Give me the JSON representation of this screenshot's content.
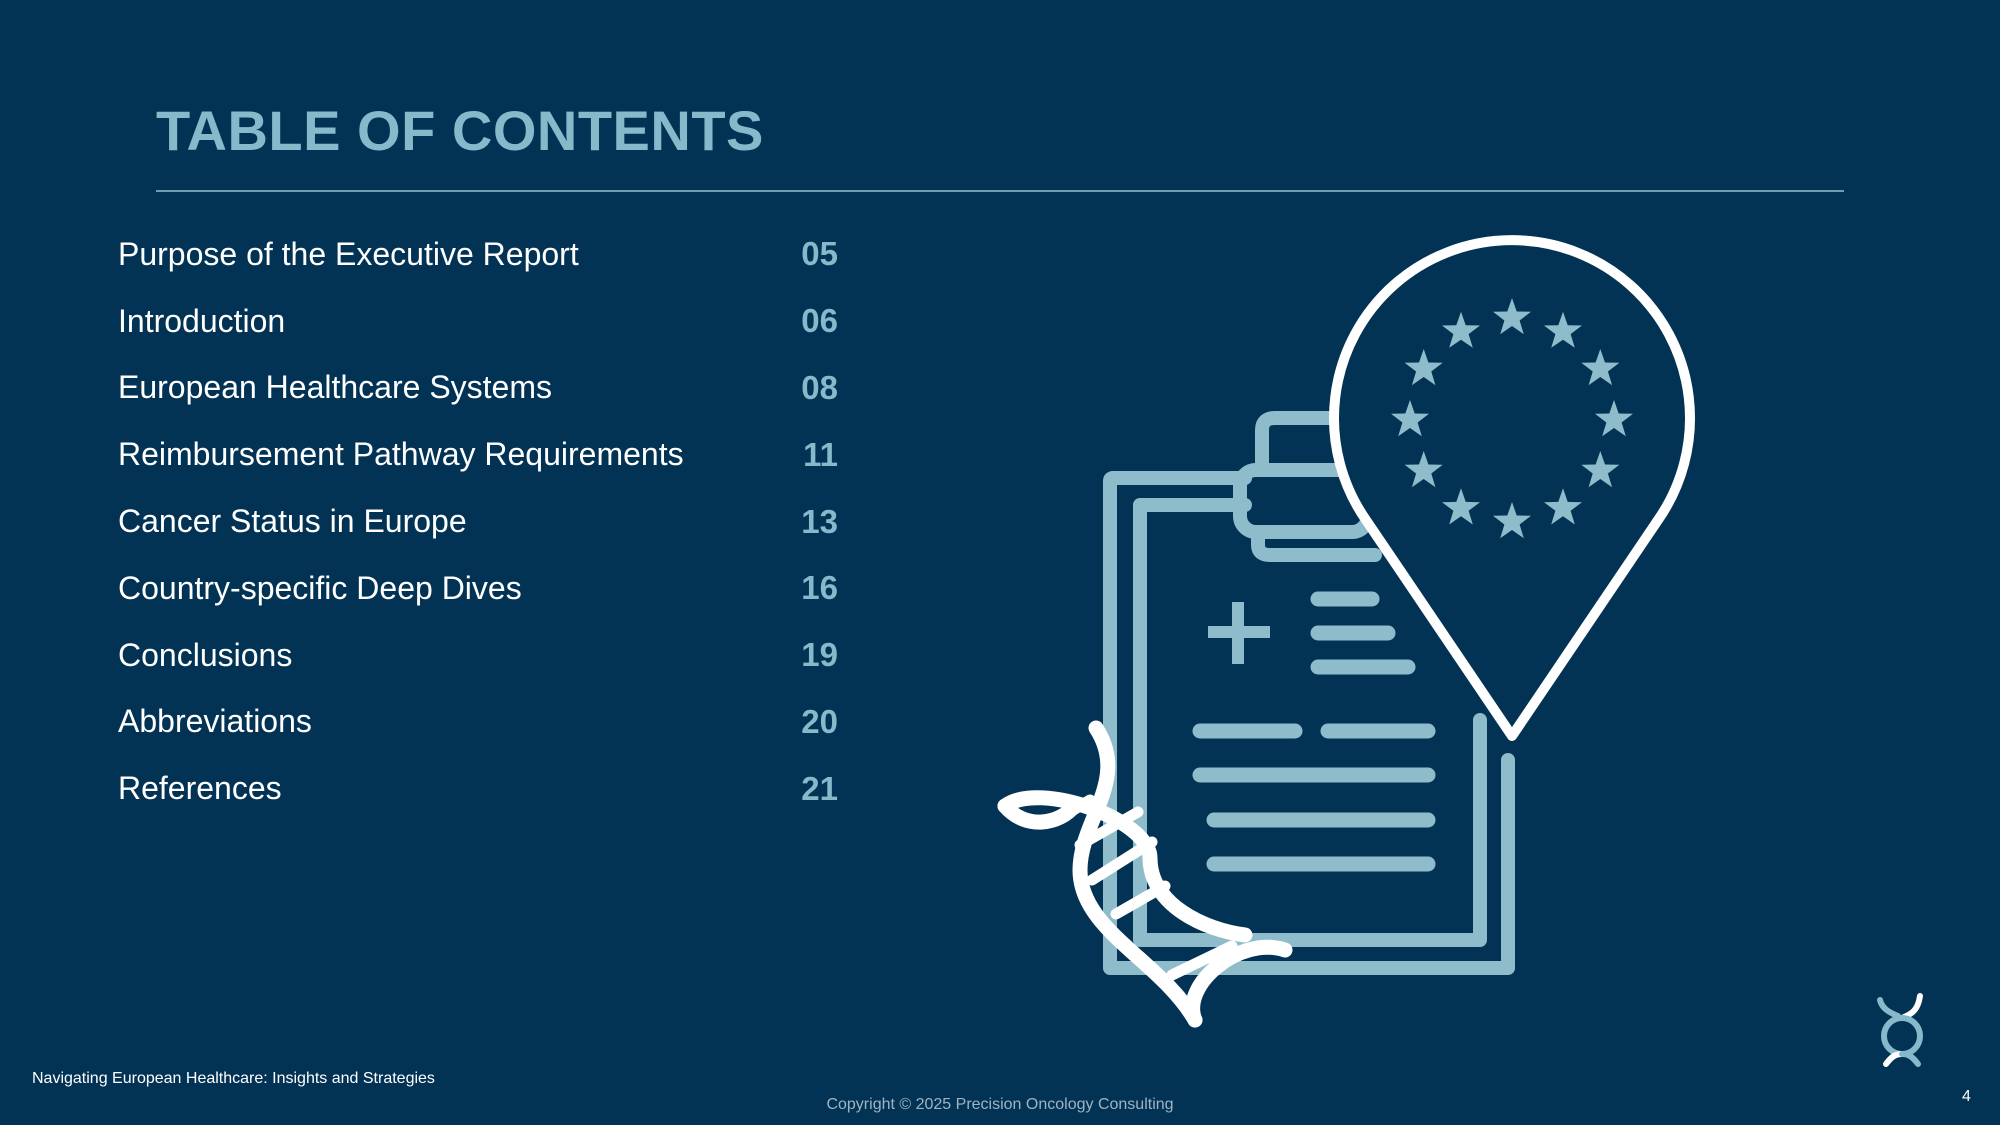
{
  "slide": {
    "title": "TABLE OF CONTENTS",
    "toc": [
      {
        "label": "Purpose of the Executive Report",
        "page": "05"
      },
      {
        "label": "Introduction",
        "page": "06"
      },
      {
        "label": "European Healthcare Systems",
        "page": "08"
      },
      {
        "label": "Reimbursement Pathway Requirements",
        "page": "11"
      },
      {
        "label": "Cancer Status in Europe",
        "page": "13"
      },
      {
        "label": "Country-specific Deep Dives",
        "page": "16"
      },
      {
        "label": "Conclusions",
        "page": "19"
      },
      {
        "label": "Abbreviations",
        "page": "20"
      },
      {
        "label": "References",
        "page": "21"
      }
    ]
  },
  "footer": {
    "left_text": "Navigating European Healthcare: Insights and Strategies",
    "copyright": "Copyright © 2025 Precision Oncology Consulting",
    "page_number": "4"
  },
  "illustration": {
    "icons": [
      "clipboard-icon",
      "medical-cross-icon",
      "dna-helix-icon",
      "eu-location-pin-icon",
      "eu-stars-icon"
    ]
  },
  "colors": {
    "background": "#033354",
    "accent": "#86BACB",
    "text": "#FFFFFF"
  }
}
